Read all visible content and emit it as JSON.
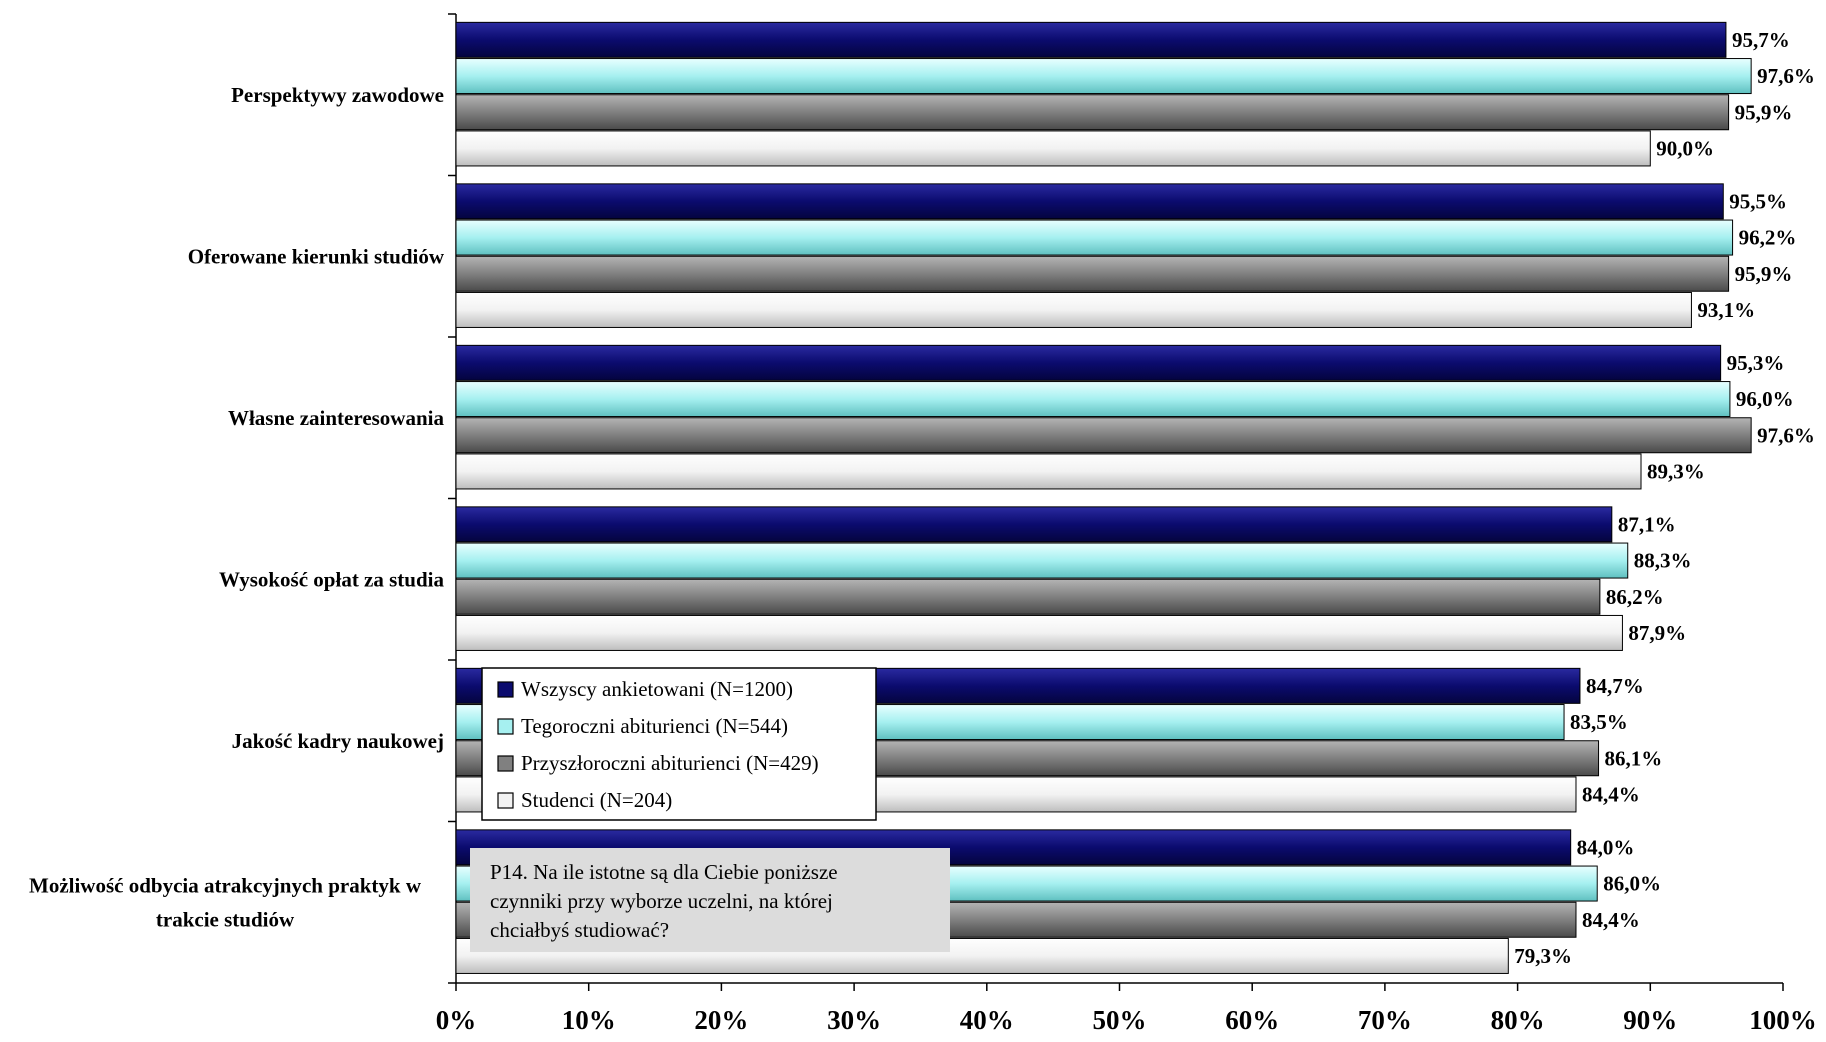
{
  "chart_data": {
    "type": "bar",
    "orientation": "horizontal",
    "categories": [
      "Perspektywy zawodowe",
      "Oferowane kierunki studiów",
      "Własne zainteresowania",
      "Wysokość opłat za studia",
      "Jakość kadry naukowej",
      "Możliwość odbycia atrakcyjnych praktyk w trakcie studiów"
    ],
    "series": [
      {
        "name": "Wszyscy ankietowani (N=1200)",
        "color": "#0b0b6e",
        "values": [
          95.7,
          95.5,
          95.3,
          87.1,
          84.7,
          84.0
        ],
        "labels": [
          "95,7%",
          "95,5%",
          "95,3%",
          "87,1%",
          "84,7%",
          "84,0%"
        ]
      },
      {
        "name": "Tegoroczni abiturienci (N=544)",
        "color": "#a6f0f0",
        "values": [
          97.6,
          96.2,
          96.0,
          88.3,
          83.5,
          86.0
        ],
        "labels": [
          "97,6%",
          "96,2%",
          "96,0%",
          "88,3%",
          "83,5%",
          "86,0%"
        ]
      },
      {
        "name": "Przyszłoroczni abiturienci (N=429)",
        "color": "#808080",
        "values": [
          95.9,
          95.9,
          97.6,
          86.2,
          86.1,
          84.4
        ],
        "labels": [
          "95,9%",
          "95,9%",
          "97,6%",
          "86,2%",
          "86,1%",
          "84,4%"
        ]
      },
      {
        "name": "Studenci (N=204)",
        "color": "#f2f2f2",
        "values": [
          90.0,
          93.1,
          89.3,
          87.9,
          84.4,
          79.3
        ],
        "labels": [
          "90,0%",
          "93,1%",
          "89,3%",
          "87,9%",
          "84,4%",
          "79,3%"
        ]
      }
    ],
    "xlim": [
      0,
      100
    ],
    "xticks": [
      "0%",
      "10%",
      "20%",
      "30%",
      "40%",
      "50%",
      "60%",
      "70%",
      "80%",
      "90%",
      "100%"
    ],
    "grid": false,
    "legend_position": "lower-left inside",
    "note": "P14. Na ile istotne są dla Ciebie poniższe czynniki przy wyborze uczelni, na której chciałbyś studiować?"
  }
}
